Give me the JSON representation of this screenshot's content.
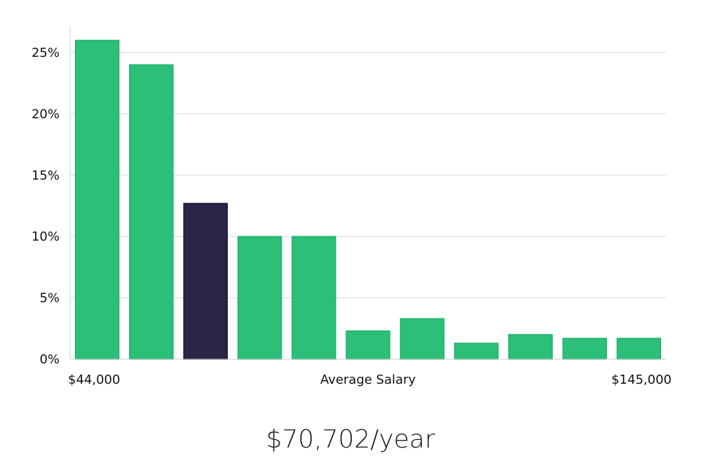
{
  "chart_data": {
    "type": "bar",
    "x_start_label": "$44,000",
    "x_end_label": "$145,000",
    "xlabel": "Average Salary",
    "ylabel": "",
    "ylim": [
      0,
      27
    ],
    "yticks": [
      0,
      5,
      10,
      15,
      20,
      25
    ],
    "ytick_labels": [
      "0%",
      "5%",
      "10%",
      "15%",
      "20%",
      "25%"
    ],
    "grid": true,
    "values": [
      26.0,
      24.0,
      12.7,
      10.0,
      10.0,
      2.3,
      3.3,
      1.3,
      2.0,
      1.7,
      1.7
    ],
    "highlight_index": 2,
    "colors": {
      "bar": "#2bbf77",
      "bar_border": "#23b06c",
      "highlight": "#2a2547",
      "grid": "#d9d9d9",
      "axis": "#cccccc"
    }
  },
  "summary": {
    "salary_text": "$70,702/year"
  }
}
